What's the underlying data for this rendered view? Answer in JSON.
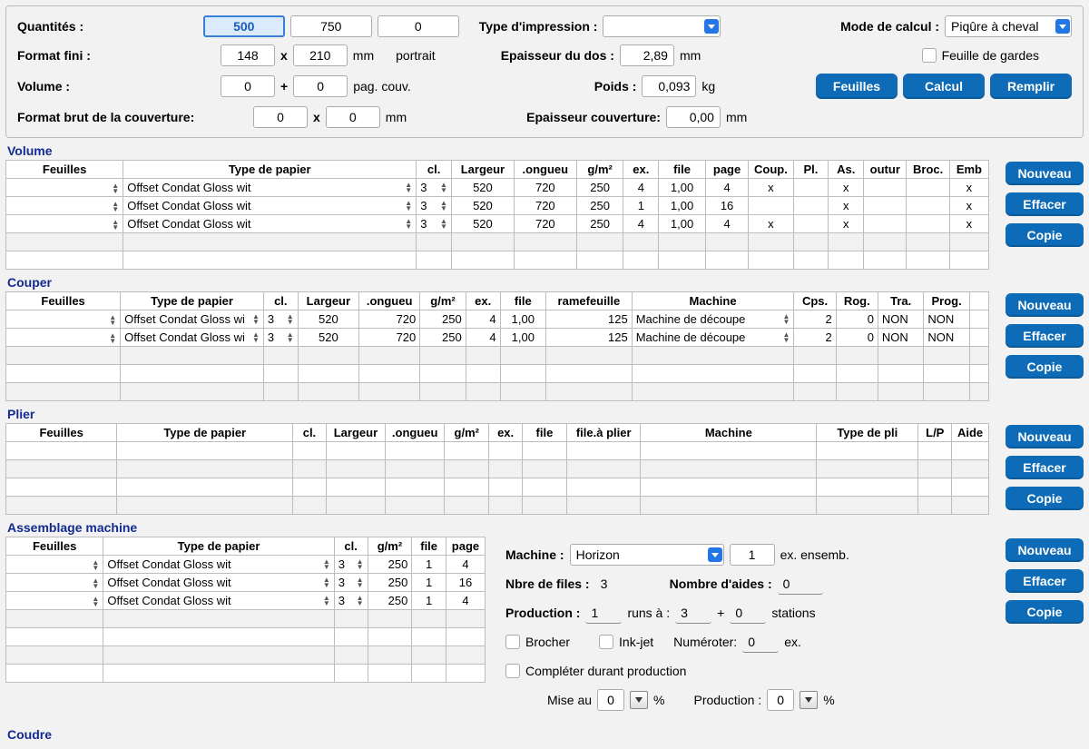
{
  "top": {
    "labels": {
      "quantites": "Quantités :",
      "type_impression": "Type d'impression :",
      "mode_calcul": "Mode de calcul :",
      "format_fini": "Format fini :",
      "mm": "mm",
      "orientation": "portrait",
      "epaisseur_dos": "Epaisseur du dos :",
      "feuille_gardes": "Feuille de gardes",
      "volume": "Volume :",
      "pag_couv": "pag. couv.",
      "poids": "Poids :",
      "kg": "kg",
      "format_brut": "Format brut de la couverture:",
      "epaisseur_couv": "Epaisseur couverture:",
      "x": "x",
      "plus": "+"
    },
    "values": {
      "q1": "500",
      "q2": "750",
      "q3": "0",
      "mode_calcul": "Piqûre à cheval",
      "ff_w": "148",
      "ff_h": "210",
      "epaisseur_dos": "2,89",
      "vol_a": "0",
      "vol_b": "0",
      "poids": "0,093",
      "brut_w": "0",
      "brut_h": "0",
      "epaisseur_couv": "0,00"
    },
    "buttons": {
      "feuilles": "Feuilles",
      "calcul": "Calcul",
      "remplir": "Remplir"
    }
  },
  "common_buttons": {
    "nouveau": "Nouveau",
    "effacer": "Effacer",
    "copie": "Copie"
  },
  "volume": {
    "title": "Volume",
    "headers": [
      "Feuilles",
      "Type de papier",
      "cl.",
      "Largeur",
      ".ongueu",
      "g/m²",
      "ex.",
      "file",
      "page",
      "Coup.",
      "Pl.",
      "As.",
      "outur",
      "Broc.",
      "Emb"
    ],
    "rows": [
      {
        "papier": "Offset Condat Gloss wit",
        "cl": "3",
        "largeur": "520",
        "longueu": "720",
        "gm": "250",
        "ex": "4",
        "file": "1,00",
        "page": "4",
        "coup": "x",
        "pl": "",
        "as": "x",
        "outur": "",
        "broc": "",
        "emb": "x"
      },
      {
        "papier": "Offset Condat Gloss wit",
        "cl": "3",
        "largeur": "520",
        "longueu": "720",
        "gm": "250",
        "ex": "1",
        "file": "1,00",
        "page": "16",
        "coup": "",
        "pl": "",
        "as": "x",
        "outur": "",
        "broc": "",
        "emb": "x"
      },
      {
        "papier": "Offset Condat Gloss wit",
        "cl": "3",
        "largeur": "520",
        "longueu": "720",
        "gm": "250",
        "ex": "4",
        "file": "1,00",
        "page": "4",
        "coup": "x",
        "pl": "",
        "as": "x",
        "outur": "",
        "broc": "",
        "emb": "x"
      }
    ]
  },
  "couper": {
    "title": "Couper",
    "headers": [
      "Feuilles",
      "Type de papier",
      "cl.",
      "Largeur",
      ".ongueu",
      "g/m²",
      "ex.",
      "file",
      "ramefeuille",
      "Machine",
      "Cps.",
      "Rog.",
      "Tra.",
      "Prog."
    ],
    "rows": [
      {
        "papier": "Offset Condat Gloss wi",
        "cl": "3",
        "largeur": "520",
        "longueu": "720",
        "gm": "250",
        "ex": "4",
        "file": "1,00",
        "rame": "125",
        "machine": "Machine de découpe",
        "cps": "2",
        "rog": "0",
        "tra": "NON",
        "prog": "NON"
      },
      {
        "papier": "Offset Condat Gloss wi",
        "cl": "3",
        "largeur": "520",
        "longueu": "720",
        "gm": "250",
        "ex": "4",
        "file": "1,00",
        "rame": "125",
        "machine": "Machine de découpe",
        "cps": "2",
        "rog": "0",
        "tra": "NON",
        "prog": "NON"
      }
    ]
  },
  "plier": {
    "title": "Plier",
    "headers": [
      "Feuilles",
      "Type de papier",
      "cl.",
      "Largeur",
      ".ongueu",
      "g/m²",
      "ex.",
      "file",
      "file.à plier",
      "Machine",
      "Type de pli",
      "L/P",
      "Aide"
    ]
  },
  "assembly": {
    "title": "Assemblage machine",
    "headers": [
      "Feuilles",
      "Type de papier",
      "cl.",
      "g/m²",
      "file",
      "page"
    ],
    "rows": [
      {
        "papier": "Offset Condat Gloss wit",
        "cl": "3",
        "gm": "250",
        "file": "1",
        "page": "4"
      },
      {
        "papier": "Offset Condat Gloss wit",
        "cl": "3",
        "gm": "250",
        "file": "1",
        "page": "16"
      },
      {
        "papier": "Offset Condat Gloss wit",
        "cl": "3",
        "gm": "250",
        "file": "1",
        "page": "4"
      }
    ],
    "params": {
      "machine_label": "Machine :",
      "machine": "Horizon",
      "ex_ensemb_val": "1",
      "ex_ensemb": "ex. ensemb.",
      "nbre_files_label": "Nbre de files :",
      "nbre_files": "3",
      "nombre_aides_label": "Nombre d'aides :",
      "nombre_aides": "0",
      "production_label": "Production :",
      "production": "1",
      "runs_a": "runs à :",
      "runs_val": "3",
      "plus": "+",
      "stations_val": "0",
      "stations": "stations",
      "brocher": "Brocher",
      "inkjet": "Ink-jet",
      "numeroter": "Numéroter:",
      "numeroter_val": "0",
      "ex": "ex.",
      "completer": "Compléter durant production",
      "mise_au": "Mise au",
      "mise_val": "0",
      "pct": "%",
      "production2": "Production :",
      "prod2_val": "0"
    }
  },
  "coudre": {
    "title": "Coudre"
  }
}
